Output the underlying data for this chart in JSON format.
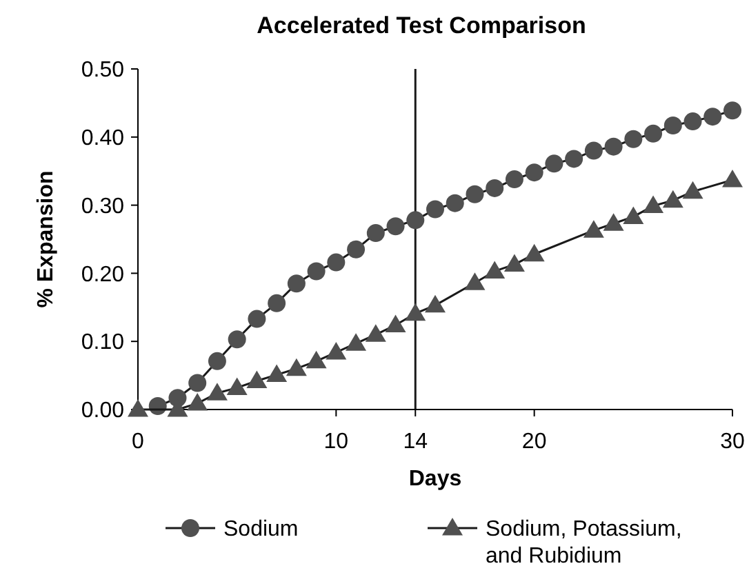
{
  "chart_data": {
    "type": "line",
    "title": "Accelerated Test Comparison",
    "xlabel": "Days",
    "ylabel": "% Expansion",
    "xlim": [
      0,
      30
    ],
    "xticks": [
      0,
      10,
      14,
      20,
      30
    ],
    "ylim": [
      0,
      0.5
    ],
    "yticks": [
      {
        "value": 0,
        "label": "0.00"
      },
      {
        "value": 0.1,
        "label": "0.10"
      },
      {
        "value": 0.2,
        "label": "0.20"
      },
      {
        "value": 0.3,
        "label": "0.30"
      },
      {
        "value": 0.4,
        "label": "0.40"
      },
      {
        "value": 0.5,
        "label": "0.50"
      }
    ],
    "grid": false,
    "legend": "bottom",
    "line_style": "solid",
    "ref_lines": [
      {
        "axis": "x",
        "value": 14,
        "color": "#1a1a1a"
      }
    ],
    "series": [
      {
        "name": "Sodium",
        "color": "#505050",
        "marker": "circle",
        "x": [
          1,
          2,
          3,
          4,
          5,
          6,
          7,
          8,
          9,
          10,
          11,
          12,
          13,
          14,
          15,
          16,
          17,
          18,
          19,
          20,
          21,
          22,
          23,
          24,
          25,
          26,
          27,
          28,
          29,
          30
        ],
        "values": [
          0.005,
          0.017,
          0.039,
          0.071,
          0.103,
          0.133,
          0.156,
          0.185,
          0.203,
          0.216,
          0.235,
          0.259,
          0.269,
          0.278,
          0.294,
          0.303,
          0.316,
          0.325,
          0.338,
          0.348,
          0.361,
          0.368,
          0.38,
          0.386,
          0.397,
          0.405,
          0.417,
          0.423,
          0.43,
          0.439
        ]
      },
      {
        "name": "Sodium, Potassium, and Rubidium",
        "color": "#505050",
        "marker": "triangle",
        "x": [
          0,
          2,
          3,
          4,
          5,
          6,
          7,
          8,
          9,
          10,
          11,
          12,
          13,
          14,
          15,
          17,
          18,
          19,
          20,
          23,
          24,
          25,
          26,
          27,
          28,
          30
        ],
        "values": [
          0,
          0,
          0.009,
          0.024,
          0.032,
          0.042,
          0.051,
          0.06,
          0.071,
          0.084,
          0.097,
          0.11,
          0.124,
          0.141,
          0.153,
          0.186,
          0.203,
          0.213,
          0.228,
          0.263,
          0.273,
          0.283,
          0.299,
          0.307,
          0.32,
          0.337
        ]
      }
    ]
  }
}
